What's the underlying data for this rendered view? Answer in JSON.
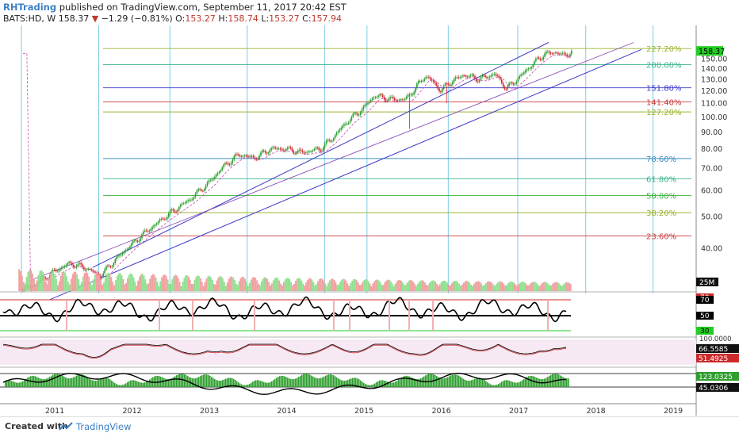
{
  "header": {
    "publisher": "RHTrading",
    "published_text": "published on TradingView.com, September 11, 2017 20:42 EST",
    "symbol": "BATS:HD, W",
    "last": "158.37",
    "change": "−1.29 (−0.81%)",
    "o_label": "O:",
    "o": "153.27",
    "h_label": "H:",
    "h": "158.74",
    "l_label": "L:",
    "l": "153.27",
    "c_label": "C:",
    "c": "157.94"
  },
  "footer": {
    "created_with": "Created with",
    "tradingview": "TradingView"
  },
  "colors": {
    "up": "#2e9e2e",
    "down": "#cc2a2a",
    "channel": "#3b3bcc",
    "price_tag": "#22cc22",
    "osc_red": "#cc2a2a"
  },
  "chart_data": {
    "type": "candlestick",
    "symbol": "BATS:HD",
    "interval": "W",
    "x_ticks": [
      "2011",
      "2012",
      "2013",
      "2014",
      "2015",
      "2016",
      "2017",
      "2018",
      "2019"
    ],
    "y_ticks": [
      "40.00",
      "50.00",
      "60.00",
      "70.00",
      "80.00",
      "90.00",
      "100.00",
      "110.00",
      "120.00",
      "130.00",
      "140.00",
      "150.00"
    ],
    "y_scale": "log",
    "ylim": [
      32,
      168
    ],
    "last_price_label": "158.37",
    "price_path": [
      [
        2010.6,
        30
      ],
      [
        2010.75,
        31
      ],
      [
        2011.0,
        34
      ],
      [
        2011.2,
        36
      ],
      [
        2011.4,
        35
      ],
      [
        2011.6,
        33
      ],
      [
        2011.8,
        37
      ],
      [
        2012.0,
        41
      ],
      [
        2012.25,
        46
      ],
      [
        2012.5,
        51
      ],
      [
        2012.75,
        56
      ],
      [
        2013.0,
        63
      ],
      [
        2013.2,
        71
      ],
      [
        2013.4,
        77
      ],
      [
        2013.6,
        75
      ],
      [
        2013.8,
        80
      ],
      [
        2014.0,
        80
      ],
      [
        2014.2,
        78
      ],
      [
        2014.45,
        80
      ],
      [
        2014.6,
        86
      ],
      [
        2014.8,
        97
      ],
      [
        2015.0,
        106
      ],
      [
        2015.15,
        116
      ],
      [
        2015.35,
        113
      ],
      [
        2015.55,
        113
      ],
      [
        2015.65,
        120
      ],
      [
        2015.8,
        133
      ],
      [
        2015.9,
        128
      ],
      [
        2016.0,
        120
      ],
      [
        2016.1,
        126
      ],
      [
        2016.3,
        134
      ],
      [
        2016.5,
        130
      ],
      [
        2016.7,
        135
      ],
      [
        2016.85,
        122
      ],
      [
        2017.0,
        130
      ],
      [
        2017.2,
        145
      ],
      [
        2017.35,
        155
      ],
      [
        2017.5,
        157
      ],
      [
        2017.6,
        153
      ],
      [
        2017.7,
        158
      ]
    ],
    "fib_levels": [
      {
        "label": "23.60%",
        "price": 43.6,
        "color": "#cc3b3b"
      },
      {
        "label": "38.20%",
        "price": 51.3,
        "color": "#9ab52e"
      },
      {
        "label": "50.00%",
        "price": 57.8,
        "color": "#3bb53b"
      },
      {
        "label": "61.80%",
        "price": 65.0,
        "color": "#3bb58a"
      },
      {
        "label": "78.60%",
        "price": 74.8,
        "color": "#3b8ec4"
      },
      {
        "label": "127.20%",
        "price": 103.5,
        "color": "#9ab52e"
      },
      {
        "label": "141.40%",
        "price": 111.0,
        "color": "#cc3b3b"
      },
      {
        "label": "151.80%",
        "price": 122.5,
        "color": "#3b3bcc"
      },
      {
        "label": "200.00%",
        "price": 144.0,
        "color": "#3bb58a"
      },
      {
        "label": "227.20%",
        "price": 161.0,
        "color": "#9ab52e"
      }
    ],
    "volume_label": "25M",
    "rsi_panel": {
      "labels": [
        "70",
        "50",
        "30"
      ],
      "value_labels": [
        "70"
      ]
    },
    "stoch_panel": {
      "top_label": "100.0000",
      "values": [
        "66.5585",
        "51.4925"
      ]
    },
    "macd_panel": {
      "values": [
        "123.0325",
        "45.0306"
      ]
    }
  }
}
